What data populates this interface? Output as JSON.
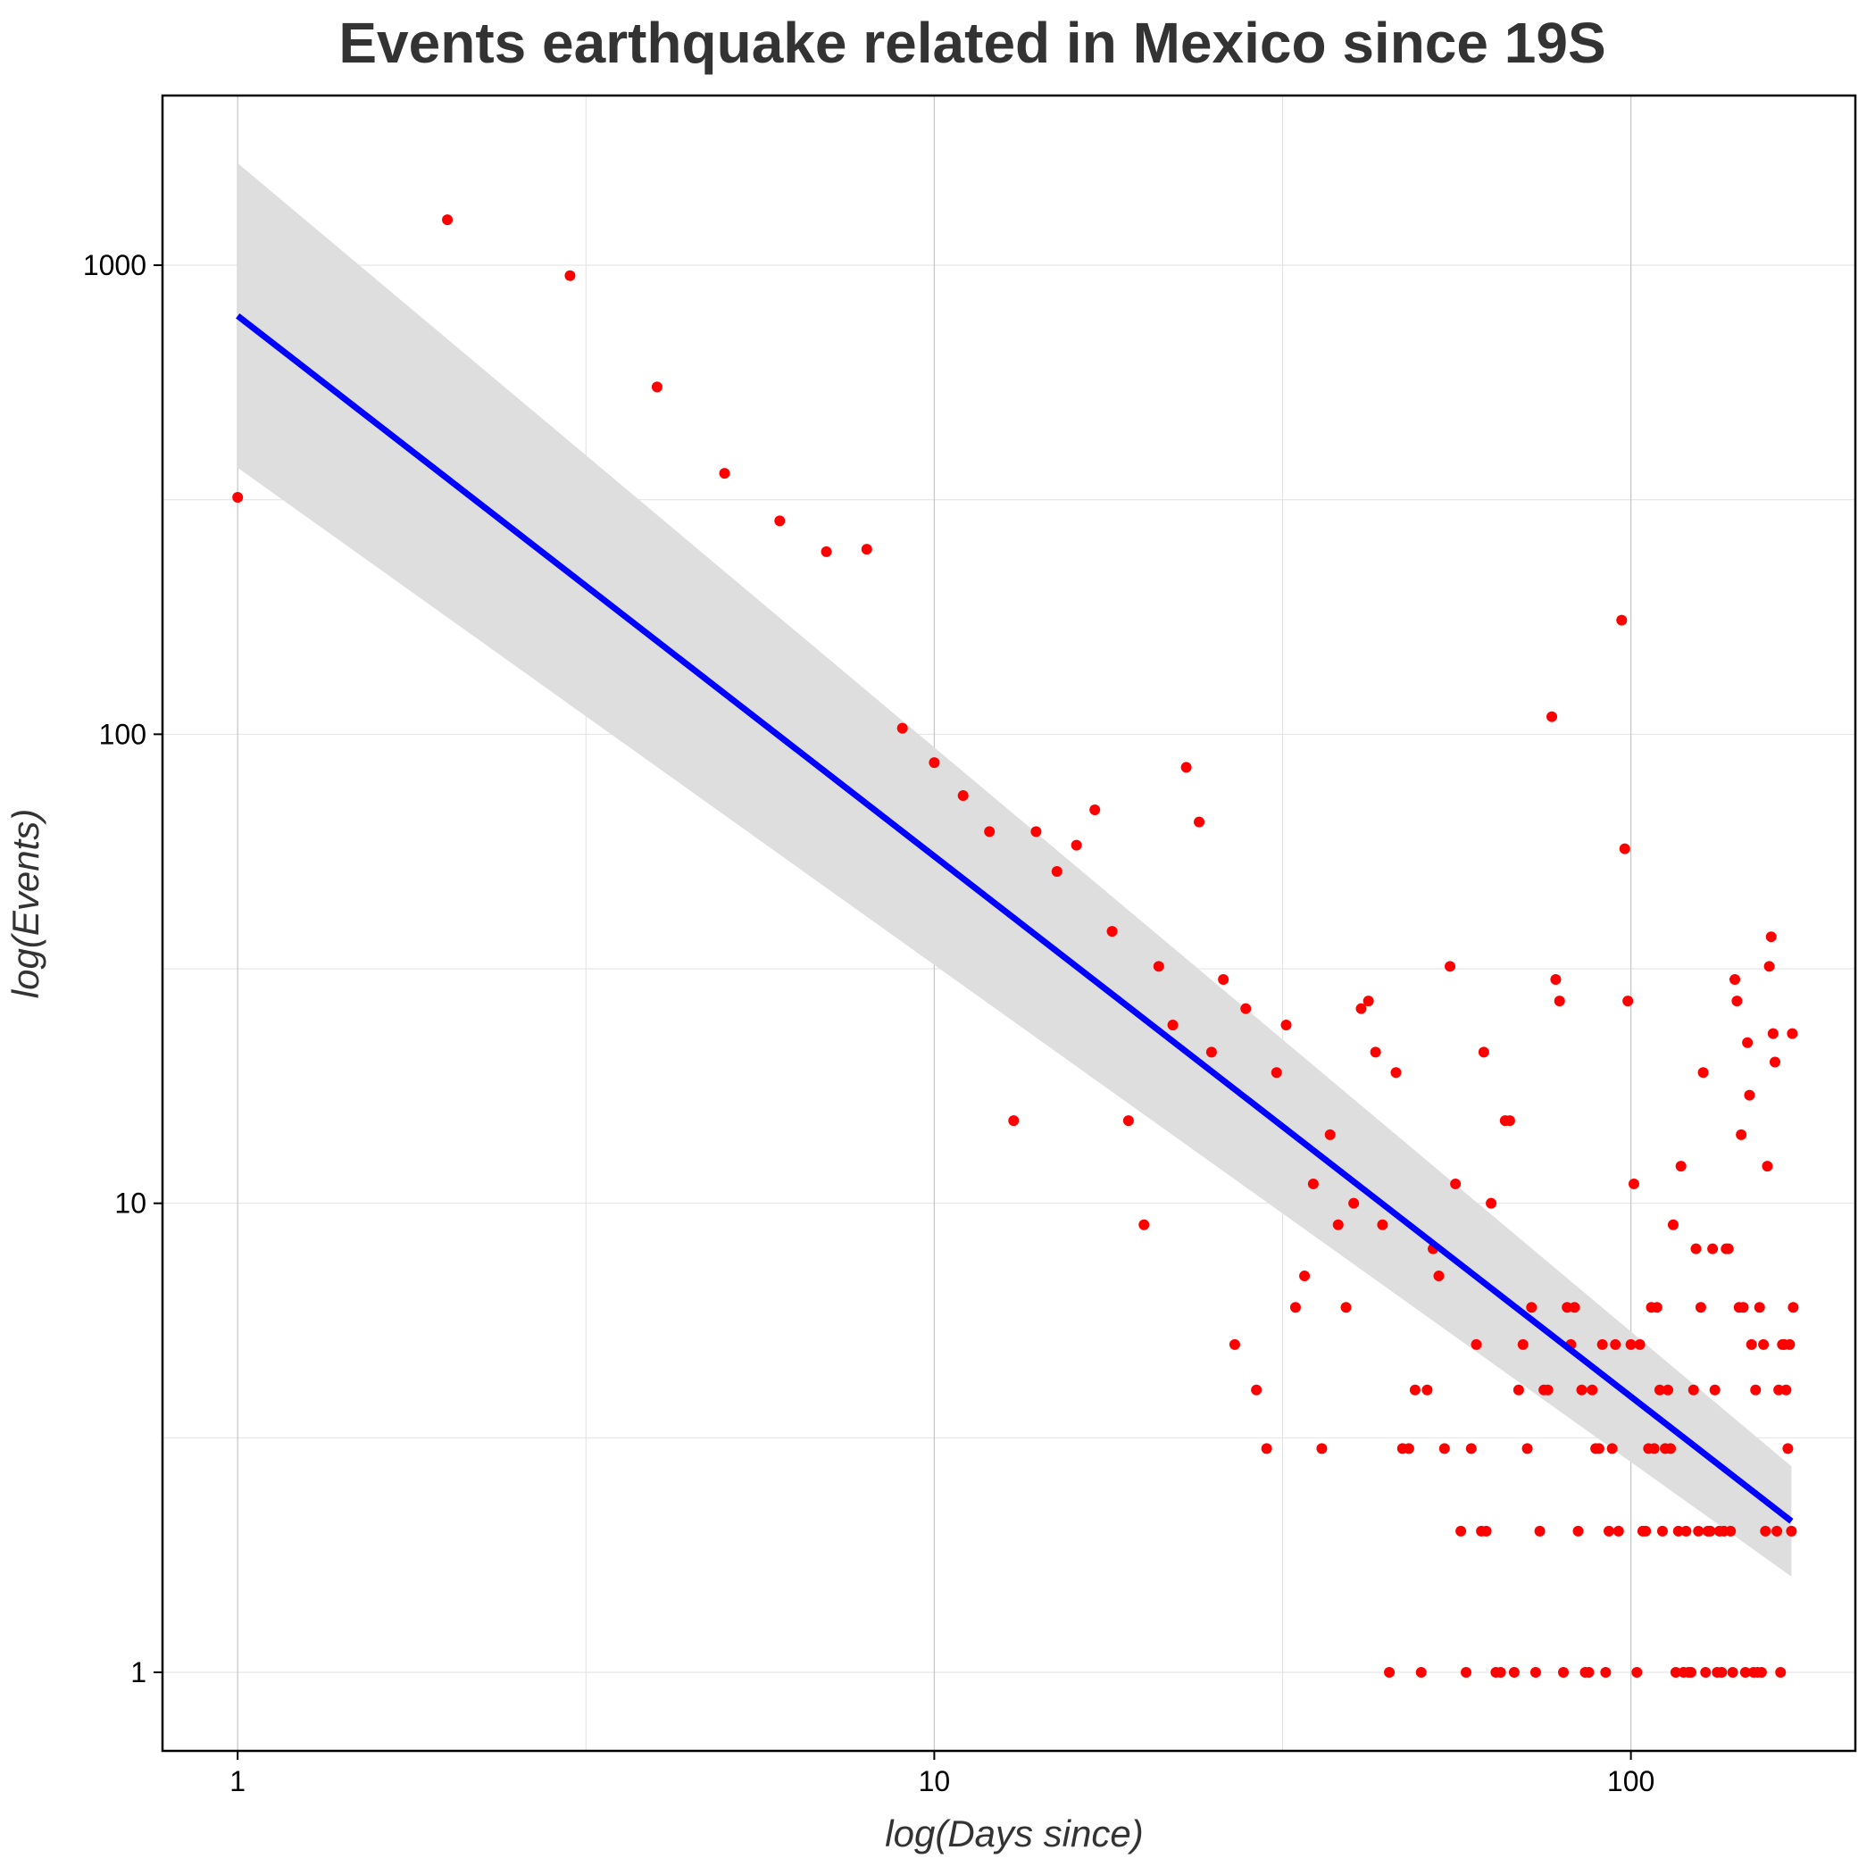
{
  "chart_data": {
    "type": "scatter",
    "title": "Events earthquake related in Mexico since 19S",
    "xlabel": "log(Days since)",
    "ylabel": "log(Events)",
    "x_scale": "log10",
    "y_scale": "log10",
    "xlim": [
      0.78,
      210
    ],
    "ylim": [
      0.68,
      2300
    ],
    "x_ticks": [
      {
        "value": 1,
        "label": "1"
      },
      {
        "value": 10,
        "label": "10"
      },
      {
        "value": 100,
        "label": "100"
      }
    ],
    "y_ticks": [
      {
        "value": 1,
        "label": "1"
      },
      {
        "value": 10,
        "label": "10"
      },
      {
        "value": 100,
        "label": "100"
      },
      {
        "value": 1000,
        "label": "1000"
      }
    ],
    "grid": true,
    "point_color": "#ff0000",
    "fit_color": "#0000ff",
    "band_color": "#dedede",
    "fit_line": {
      "type": "linear (log-log)",
      "x_range": [
        1,
        170
      ],
      "y_start": 780,
      "y_end": 2.1
    },
    "confidence_band": {
      "x_start": 1,
      "x_end": 170,
      "lower_start": 370,
      "upper_start": 1650,
      "lower_end": 1.6,
      "upper_end": 2.75
    },
    "points": [
      [
        1,
        320
      ],
      [
        2,
        1250
      ],
      [
        3,
        950
      ],
      [
        4,
        550
      ],
      [
        5,
        360
      ],
      [
        6,
        285
      ],
      [
        7,
        245
      ],
      [
        8,
        248
      ],
      [
        9,
        103
      ],
      [
        10,
        87
      ],
      [
        11,
        74
      ],
      [
        12,
        62
      ],
      [
        13,
        15
      ],
      [
        14,
        62
      ],
      [
        15,
        51
      ],
      [
        16,
        58
      ],
      [
        17,
        69
      ],
      [
        18,
        38
      ],
      [
        19,
        15
      ],
      [
        20,
        9
      ],
      [
        21,
        32
      ],
      [
        22,
        24
      ],
      [
        23,
        85
      ],
      [
        24,
        65
      ],
      [
        25,
        21
      ],
      [
        26,
        30
      ],
      [
        27,
        5
      ],
      [
        28,
        26
      ],
      [
        29,
        4
      ],
      [
        30,
        3
      ],
      [
        31,
        19
      ],
      [
        32,
        24
      ],
      [
        33,
        6
      ],
      [
        34,
        7
      ],
      [
        35,
        11
      ],
      [
        36,
        3
      ],
      [
        37,
        14
      ],
      [
        38,
        9
      ],
      [
        39,
        6
      ],
      [
        40,
        10
      ],
      [
        41,
        26
      ],
      [
        42,
        27
      ],
      [
        43,
        21
      ],
      [
        44,
        9
      ],
      [
        45,
        1
      ],
      [
        46,
        19
      ],
      [
        47,
        3
      ],
      [
        48,
        3
      ],
      [
        49,
        4
      ],
      [
        50,
        1
      ],
      [
        51,
        4
      ],
      [
        52,
        8
      ],
      [
        53,
        7
      ],
      [
        54,
        3
      ],
      [
        55,
        32
      ],
      [
        56,
        11
      ],
      [
        57,
        2
      ],
      [
        58,
        1
      ],
      [
        59,
        3
      ],
      [
        60,
        5
      ],
      [
        61,
        2
      ],
      [
        61.5,
        21
      ],
      [
        62,
        2
      ],
      [
        63,
        10
      ],
      [
        64,
        1
      ],
      [
        65,
        1
      ],
      [
        66,
        15
      ],
      [
        67,
        15
      ],
      [
        68,
        1
      ],
      [
        69,
        4
      ],
      [
        70,
        5
      ],
      [
        71,
        3
      ],
      [
        72,
        6
      ],
      [
        73,
        1
      ],
      [
        74,
        2
      ],
      [
        75,
        4
      ],
      [
        76,
        4
      ],
      [
        77,
        109
      ],
      [
        78,
        30
      ],
      [
        79,
        27
      ],
      [
        80,
        1
      ],
      [
        81,
        6
      ],
      [
        82,
        5
      ],
      [
        83,
        6
      ],
      [
        84,
        2
      ],
      [
        85,
        4
      ],
      [
        86,
        1
      ],
      [
        87,
        1
      ],
      [
        88,
        4
      ],
      [
        89,
        3
      ],
      [
        90,
        3
      ],
      [
        91,
        5
      ],
      [
        92,
        1
      ],
      [
        93,
        2
      ],
      [
        94,
        3
      ],
      [
        95,
        5
      ],
      [
        96,
        2
      ],
      [
        97,
        175
      ],
      [
        98,
        57
      ],
      [
        99,
        27
      ],
      [
        100,
        5
      ],
      [
        101,
        11
      ],
      [
        102,
        1
      ],
      [
        103,
        5
      ],
      [
        104,
        2
      ],
      [
        105,
        2
      ],
      [
        106,
        3
      ],
      [
        107,
        6
      ],
      [
        108,
        3
      ],
      [
        109,
        6
      ],
      [
        110,
        4
      ],
      [
        111,
        2
      ],
      [
        112,
        3
      ],
      [
        113,
        4
      ],
      [
        114,
        3
      ],
      [
        115,
        9
      ],
      [
        116,
        1
      ],
      [
        117,
        2
      ],
      [
        118,
        12
      ],
      [
        119,
        1
      ],
      [
        120,
        2
      ],
      [
        121,
        1
      ],
      [
        122,
        1
      ],
      [
        123,
        4
      ],
      [
        124,
        8
      ],
      [
        125,
        2
      ],
      [
        126,
        6
      ],
      [
        127,
        19
      ],
      [
        128,
        1
      ],
      [
        129,
        2
      ],
      [
        130,
        2
      ],
      [
        131,
        8
      ],
      [
        132,
        4
      ],
      [
        133,
        1
      ],
      [
        134,
        2
      ],
      [
        135,
        1
      ],
      [
        136,
        2
      ],
      [
        137,
        8
      ],
      [
        138,
        8
      ],
      [
        139,
        2
      ],
      [
        140,
        1
      ],
      [
        141,
        30
      ],
      [
        142,
        27
      ],
      [
        143,
        6
      ],
      [
        144,
        14
      ],
      [
        145,
        6
      ],
      [
        146,
        1
      ],
      [
        147,
        22
      ],
      [
        148,
        17
      ],
      [
        149,
        5
      ],
      [
        150,
        1
      ],
      [
        151,
        4
      ],
      [
        152,
        1
      ],
      [
        153,
        6
      ],
      [
        154,
        1
      ],
      [
        155,
        5
      ],
      [
        156,
        2
      ],
      [
        157,
        12
      ],
      [
        158,
        32
      ],
      [
        159,
        37
      ],
      [
        160,
        23
      ],
      [
        161,
        20
      ],
      [
        162,
        2
      ],
      [
        163,
        4
      ],
      [
        164,
        1
      ],
      [
        165,
        5
      ],
      [
        166,
        5
      ],
      [
        167,
        4
      ],
      [
        168,
        3
      ],
      [
        169,
        5
      ],
      [
        170,
        2
      ],
      [
        170.5,
        23
      ],
      [
        171,
        6
      ]
    ]
  }
}
